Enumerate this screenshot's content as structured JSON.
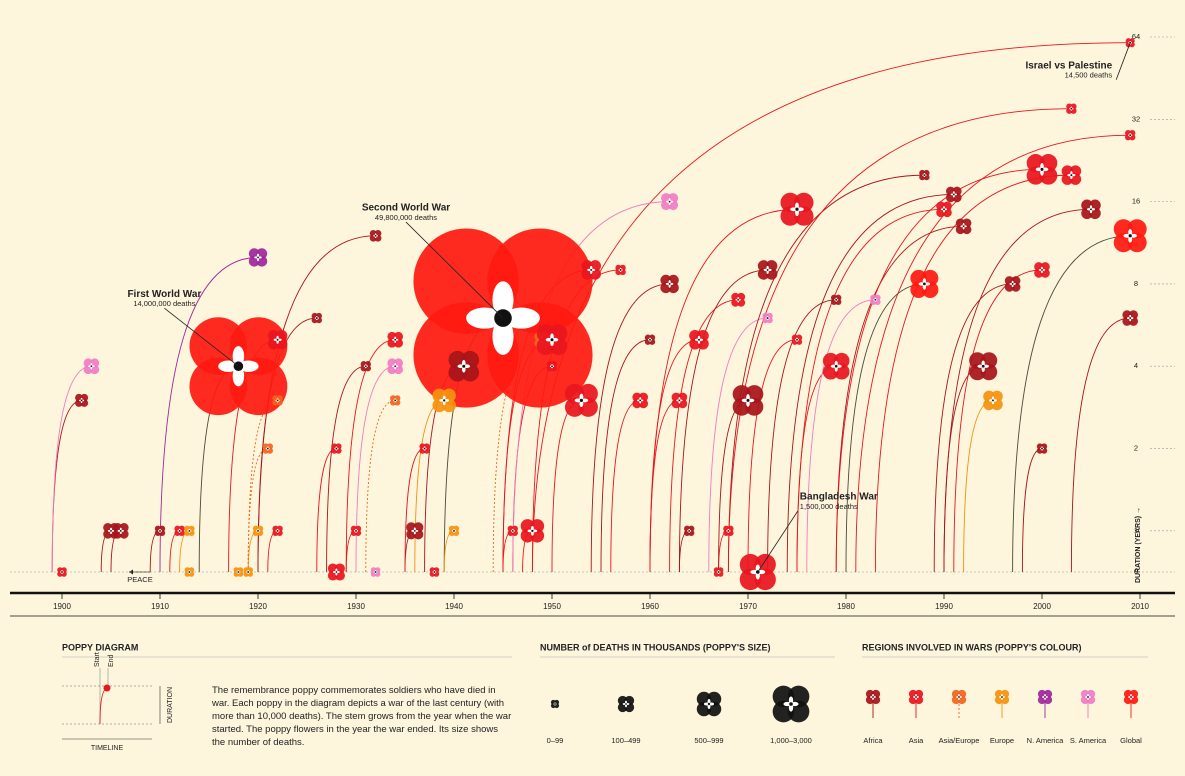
{
  "chart_data": {
    "type": "poppy",
    "xlim": [
      1900,
      2010
    ],
    "xticks": [
      1900,
      1910,
      1920,
      1930,
      1940,
      1950,
      1960,
      1970,
      1980,
      1990,
      2000,
      2010
    ],
    "ylim": [
      0,
      64
    ],
    "yticks": [
      0,
      1,
      2,
      4,
      8,
      16,
      32,
      64
    ],
    "y_scale": "log2",
    "y_label": "DURATION (YEARS) →",
    "peace_label": "PEACE",
    "regions": [
      {
        "name": "Africa",
        "color": "#a8141a"
      },
      {
        "name": "Asia",
        "color": "#e8161e"
      },
      {
        "name": "Asia/Europe",
        "color": "#f2641c"
      },
      {
        "name": "Europe",
        "color": "#f5920f"
      },
      {
        "name": "N. America",
        "color": "#a0289b"
      },
      {
        "name": "S. America",
        "color": "#f07cc3"
      },
      {
        "name": "Global",
        "color": "#ff1a10"
      }
    ],
    "wars": [
      {
        "name": "Second World War",
        "deaths_label": "49,800,000 deaths",
        "start": 1939,
        "end": 1945,
        "duration": 6,
        "deaths": 49800,
        "region": "Global"
      },
      {
        "name": "First World War",
        "deaths_label": "14,000,000 deaths",
        "start": 1914,
        "end": 1918,
        "duration": 4,
        "deaths": 14000,
        "region": "Global"
      },
      {
        "name": "Bangladesh War",
        "deaths_label": "1,500,000 deaths",
        "start": 1971,
        "end": 1971,
        "duration": 0,
        "deaths": 1500,
        "region": "Asia"
      },
      {
        "name": "Israel vs Palestine",
        "deaths_label": "14,500 deaths",
        "start": 1948,
        "end": 2009,
        "duration": 61,
        "deaths": 14.5,
        "region": "Asia"
      },
      {
        "start": 1900,
        "end": 1900,
        "duration": 0,
        "deaths": 20,
        "region": "Asia"
      },
      {
        "start": 1899,
        "end": 1902,
        "duration": 3,
        "deaths": 80,
        "region": "Africa"
      },
      {
        "start": 1899,
        "end": 1903,
        "duration": 4,
        "deaths": 150,
        "region": "S. America"
      },
      {
        "start": 1904,
        "end": 1905,
        "duration": 1,
        "deaths": 150,
        "region": "Africa"
      },
      {
        "start": 1905,
        "end": 1906,
        "duration": 1,
        "deaths": 150,
        "region": "Africa"
      },
      {
        "start": 1909,
        "end": 1910,
        "duration": 1,
        "deaths": 30,
        "region": "Africa"
      },
      {
        "start": 1911,
        "end": 1912,
        "duration": 1,
        "deaths": 30,
        "region": "Asia"
      },
      {
        "start": 1912,
        "end": 1913,
        "duration": 1,
        "deaths": 30,
        "region": "Europe"
      },
      {
        "start": 1913,
        "end": 1913,
        "duration": 0,
        "deaths": 20,
        "region": "Europe"
      },
      {
        "start": 1910,
        "end": 1920,
        "duration": 10,
        "deaths": 250,
        "region": "N. America"
      },
      {
        "start": 1917,
        "end": 1922,
        "duration": 5,
        "deaths": 300,
        "region": "Asia"
      },
      {
        "start": 1918,
        "end": 1918,
        "duration": 0,
        "deaths": 20,
        "region": "Europe"
      },
      {
        "start": 1919,
        "end": 1919,
        "duration": 0,
        "deaths": 20,
        "region": "Europe"
      },
      {
        "start": 1919,
        "end": 1920,
        "duration": 1,
        "deaths": 30,
        "region": "Europe"
      },
      {
        "start": 1921,
        "end": 1922,
        "duration": 1,
        "deaths": 30,
        "region": "Asia"
      },
      {
        "start": 1919,
        "end": 1921,
        "duration": 2,
        "deaths": 30,
        "region": "Asia/Europe"
      },
      {
        "start": 1919,
        "end": 1922,
        "duration": 3,
        "deaths": 30,
        "region": "Asia/Europe"
      },
      {
        "start": 1920,
        "end": 1926,
        "duration": 6,
        "deaths": 30,
        "region": "Africa"
      },
      {
        "start": 1926,
        "end": 1928,
        "duration": 2,
        "deaths": 30,
        "region": "Asia"
      },
      {
        "start": 1928,
        "end": 1928,
        "duration": 0,
        "deaths": 200,
        "region": "Asia"
      },
      {
        "start": 1929,
        "end": 1930,
        "duration": 1,
        "deaths": 30,
        "region": "Asia"
      },
      {
        "start": 1927,
        "end": 1931,
        "duration": 4,
        "deaths": 30,
        "region": "Africa"
      },
      {
        "start": 1920,
        "end": 1932,
        "duration": 12,
        "deaths": 50,
        "region": "Africa"
      },
      {
        "start": 1932,
        "end": 1932,
        "duration": 0,
        "deaths": 20,
        "region": "S. America"
      },
      {
        "start": 1929,
        "end": 1934,
        "duration": 5,
        "deaths": 150,
        "region": "Asia"
      },
      {
        "start": 1930,
        "end": 1934,
        "duration": 4,
        "deaths": 150,
        "region": "S. America"
      },
      {
        "start": 1931,
        "end": 1934,
        "duration": 3,
        "deaths": 30,
        "region": "Asia/Europe"
      },
      {
        "start": 1935,
        "end": 1936,
        "duration": 1,
        "deaths": 200,
        "region": "Africa"
      },
      {
        "start": 1935,
        "end": 1937,
        "duration": 2,
        "deaths": 30,
        "region": "Asia"
      },
      {
        "start": 1938,
        "end": 1938,
        "duration": 0,
        "deaths": 20,
        "region": "Asia"
      },
      {
        "start": 1936,
        "end": 1939,
        "duration": 3,
        "deaths": 500,
        "region": "Europe"
      },
      {
        "start": 1939,
        "end": 1940,
        "duration": 1,
        "deaths": 30,
        "region": "Europe"
      },
      {
        "start": 1937,
        "end": 1941,
        "duration": 4,
        "deaths": 1000,
        "region": "Africa"
      },
      {
        "start": 1944,
        "end": 1949,
        "duration": 5,
        "deaths": 150,
        "region": "Asia/Europe"
      },
      {
        "start": 1945,
        "end": 1950,
        "duration": 5,
        "deaths": 1000,
        "region": "Asia"
      },
      {
        "start": 1945,
        "end": 1946,
        "duration": 1,
        "deaths": 30,
        "region": "Asia"
      },
      {
        "start": 1947,
        "end": 1948,
        "duration": 1,
        "deaths": 500,
        "region": "Asia"
      },
      {
        "start": 1946,
        "end": 1950,
        "duration": 4,
        "deaths": 30,
        "region": "Asia"
      },
      {
        "start": 1950,
        "end": 1953,
        "duration": 3,
        "deaths": 1200,
        "region": "Asia"
      },
      {
        "start": 1945,
        "end": 1954,
        "duration": 9,
        "deaths": 300,
        "region": "Asia"
      },
      {
        "start": 1948,
        "end": 1957,
        "duration": 9,
        "deaths": 30,
        "region": "Asia"
      },
      {
        "start": 1956,
        "end": 1959,
        "duration": 3,
        "deaths": 150,
        "region": "Asia"
      },
      {
        "start": 1955,
        "end": 1960,
        "duration": 5,
        "deaths": 30,
        "region": "Africa"
      },
      {
        "start": 1954,
        "end": 1962,
        "duration": 8,
        "deaths": 250,
        "region": "Africa"
      },
      {
        "start": 1946,
        "end": 1962,
        "duration": 16,
        "deaths": 200,
        "region": "S. America"
      },
      {
        "start": 1960,
        "end": 1963,
        "duration": 3,
        "deaths": 150,
        "region": "Asia"
      },
      {
        "start": 1963,
        "end": 1964,
        "duration": 1,
        "deaths": 30,
        "region": "Africa"
      },
      {
        "start": 1960,
        "end": 1965,
        "duration": 5,
        "deaths": 300,
        "region": "Asia"
      },
      {
        "start": 1967,
        "end": 1967,
        "duration": 0,
        "deaths": 20,
        "region": "Asia"
      },
      {
        "start": 1967,
        "end": 1968,
        "duration": 1,
        "deaths": 30,
        "region": "Asia"
      },
      {
        "start": 1962,
        "end": 1969,
        "duration": 7,
        "deaths": 100,
        "region": "Asia"
      },
      {
        "start": 1967,
        "end": 1970,
        "duration": 3,
        "deaths": 1000,
        "region": "Africa"
      },
      {
        "start": 1963,
        "end": 1972,
        "duration": 9,
        "deaths": 300,
        "region": "Africa"
      },
      {
        "start": 1966,
        "end": 1972,
        "duration": 6,
        "deaths": 30,
        "region": "S. America"
      },
      {
        "start": 1960,
        "end": 1975,
        "duration": 15,
        "deaths": 1200,
        "region": "Asia"
      },
      {
        "start": 1970,
        "end": 1975,
        "duration": 5,
        "deaths": 30,
        "region": "Asia"
      },
      {
        "start": 1975,
        "end": 1979,
        "duration": 4,
        "deaths": 700,
        "region": "Asia"
      },
      {
        "start": 1972,
        "end": 1979,
        "duration": 7,
        "deaths": 30,
        "region": "Africa"
      },
      {
        "start": 1976,
        "end": 1983,
        "duration": 7,
        "deaths": 30,
        "region": "S. America"
      },
      {
        "start": 1980,
        "end": 1988,
        "duration": 8,
        "deaths": 800,
        "region": "Global"
      },
      {
        "start": 1968,
        "end": 1988,
        "duration": 20,
        "deaths": 30,
        "region": "Africa"
      },
      {
        "start": 1974,
        "end": 1991,
        "duration": 17,
        "deaths": 150,
        "region": "Africa"
      },
      {
        "start": 1975,
        "end": 1990,
        "duration": 15,
        "deaths": 150,
        "region": "Asia"
      },
      {
        "start": 1979,
        "end": 1992,
        "duration": 13,
        "deaths": 150,
        "region": "Africa"
      },
      {
        "start": 1990,
        "end": 1994,
        "duration": 4,
        "deaths": 800,
        "region": "Africa"
      },
      {
        "start": 1992,
        "end": 1995,
        "duration": 3,
        "deaths": 300,
        "region": "Europe"
      },
      {
        "start": 1989,
        "end": 1997,
        "duration": 8,
        "deaths": 150,
        "region": "Africa"
      },
      {
        "start": 1979,
        "end": 2000,
        "duration": 21,
        "deaths": 1000,
        "region": "Asia"
      },
      {
        "start": 1991,
        "end": 2000,
        "duration": 9,
        "deaths": 150,
        "region": "Asia"
      },
      {
        "start": 1983,
        "end": 2003,
        "duration": 20,
        "deaths": 300,
        "region": "Asia"
      },
      {
        "start": 1990,
        "end": 2005,
        "duration": 15,
        "deaths": 300,
        "region": "Africa"
      },
      {
        "start": 1997,
        "end": 2009,
        "duration": 12,
        "deaths": 1200,
        "region": "Global"
      },
      {
        "start": 2003,
        "end": 2009,
        "duration": 6,
        "deaths": 150,
        "region": "Africa"
      },
      {
        "start": 1998,
        "end": 2000,
        "duration": 2,
        "deaths": 30,
        "region": "Africa"
      },
      {
        "start": 1981,
        "end": 2009,
        "duration": 28,
        "deaths": 30,
        "region": "Asia"
      },
      {
        "start": 1968,
        "end": 2003,
        "duration": 35,
        "deaths": 30,
        "region": "Asia"
      }
    ],
    "legend": {
      "diagram_title": "POPPY DIAGRAM",
      "start": "Start",
      "end": "End",
      "duration": "DURATION",
      "timeline": "TIMELINE",
      "text": "The remembrance poppy commemorates soldiers who have died in war. Each poppy in the diagram depicts a war of the last century (with more than 10,000 deaths). The stem grows from the year when the war started. The poppy flowers in the year the war ended. Its size shows the number of deaths.",
      "size_title": "NUMBER of DEATHS IN THOUSANDS (POPPY'S SIZE)",
      "size_classes": [
        "0–99",
        "100–499",
        "500–999",
        "1,000–3,000"
      ],
      "colour_title": "REGIONS INVOLVED IN WARS (POPPY'S COLOUR)"
    }
  }
}
